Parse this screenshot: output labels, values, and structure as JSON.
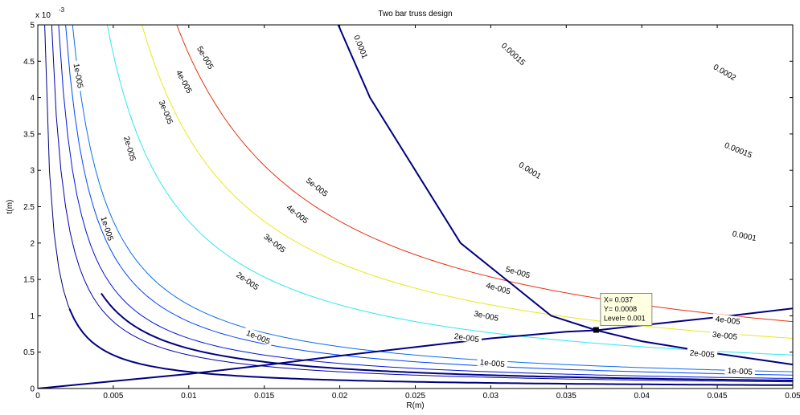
{
  "chart_data": {
    "type": "contour",
    "title": "Two bar truss design",
    "xlabel": "R(m)",
    "ylabel": "t(m)",
    "y_exponent_label": "x 10",
    "y_exponent_power": "-3",
    "xlim": [
      0,
      0.05
    ],
    "ylim": [
      0,
      5
    ],
    "grid": false,
    "xticks": [
      {
        "v": 0,
        "label": "0"
      },
      {
        "v": 0.005,
        "label": "0.005"
      },
      {
        "v": 0.01,
        "label": "0.01"
      },
      {
        "v": 0.015,
        "label": "0.015"
      },
      {
        "v": 0.02,
        "label": "0.02"
      },
      {
        "v": 0.025,
        "label": "0.025"
      },
      {
        "v": 0.03,
        "label": "0.03"
      },
      {
        "v": 0.035,
        "label": "0.035"
      },
      {
        "v": 0.04,
        "label": "0.04"
      },
      {
        "v": 0.045,
        "label": "0.045"
      },
      {
        "v": 0.05,
        "label": "0.05"
      }
    ],
    "yticks": [
      {
        "v": 0,
        "label": "0"
      },
      {
        "v": 0.5,
        "label": "0.5"
      },
      {
        "v": 1,
        "label": "1"
      },
      {
        "v": 1.5,
        "label": "1.5"
      },
      {
        "v": 2,
        "label": "2"
      },
      {
        "v": 2.5,
        "label": "2.5"
      },
      {
        "v": 3,
        "label": "3"
      },
      {
        "v": 3.5,
        "label": "3.5"
      },
      {
        "v": 4,
        "label": "4"
      },
      {
        "v": 4.5,
        "label": "4.5"
      },
      {
        "v": 5,
        "label": "5"
      }
    ],
    "contour_levels": [
      {
        "level": 1e-05,
        "label": "1e-005",
        "color": "#00007f",
        "k": 0.0023
      },
      {
        "level": 2e-05,
        "label": "2e-005",
        "color": "#0000ad",
        "k": 0.0046
      },
      {
        "level": 3e-05,
        "label": "3e-005",
        "color": "#0014dd",
        "k": 0.0069
      },
      {
        "level": 4e-05,
        "label": "4e-005",
        "color": "#0044ff",
        "k": 0.0092
      },
      {
        "level": 5e-05,
        "label": "5e-005",
        "color": "#0a6cf0",
        "k": 0.0115
      },
      {
        "level": 0.0001,
        "label": "0.0001",
        "color": "#2ee8ee",
        "k": 0.023
      },
      {
        "level": 0.00015,
        "label": "0.00015",
        "color": "#e8e81a",
        "k": 0.0345
      },
      {
        "level": 0.0002,
        "label": "0.0002",
        "color": "#e83010",
        "k": 0.046
      }
    ],
    "constraint_curves": [
      {
        "name": "buckling",
        "type": "hyperbola",
        "k": 0.0023,
        "x_from": 0.0021,
        "x_to": 0.05,
        "color": "#00007f"
      },
      {
        "name": "stress",
        "type": "hyperbola",
        "k": 0.0055,
        "x_from": 0.0042,
        "x_to": 0.05,
        "color": "#00007f"
      },
      {
        "name": "steep",
        "type": "polyline",
        "color": "#00007f",
        "points": [
          [
            0.0199,
            5.0
          ],
          [
            0.022,
            4.0
          ],
          [
            0.025,
            3.0
          ],
          [
            0.028,
            2.0
          ],
          [
            0.031,
            1.5
          ],
          [
            0.034,
            1.0
          ],
          [
            0.037,
            0.8
          ],
          [
            0.04,
            0.65
          ],
          [
            0.045,
            0.48
          ],
          [
            0.05,
            0.33
          ]
        ]
      },
      {
        "name": "rising",
        "type": "polyline",
        "color": "#00007f",
        "points": [
          [
            0.0,
            0.0
          ],
          [
            0.005,
            0.1
          ],
          [
            0.01,
            0.2
          ],
          [
            0.015,
            0.32
          ],
          [
            0.02,
            0.45
          ],
          [
            0.025,
            0.57
          ],
          [
            0.03,
            0.69
          ],
          [
            0.035,
            0.78
          ],
          [
            0.037,
            0.8
          ],
          [
            0.04,
            0.87
          ],
          [
            0.045,
            0.98
          ],
          [
            0.05,
            1.1
          ]
        ]
      }
    ],
    "contour_label_positions": [
      {
        "text": "1e-005",
        "x": 0.0027,
        "y": 4.3,
        "rotate": 80
      },
      {
        "text": "1e-005",
        "x": 0.0046,
        "y": 2.2,
        "rotate": 72
      },
      {
        "text": "1e-005",
        "x": 0.0146,
        "y": 0.71,
        "rotate": 22
      },
      {
        "text": "1e-005",
        "x": 0.0301,
        "y": 0.35,
        "rotate": 5
      },
      {
        "text": "1e-005",
        "x": 0.0465,
        "y": 0.24,
        "rotate": 3
      },
      {
        "text": "2e-005",
        "x": 0.0061,
        "y": 3.3,
        "rotate": 74
      },
      {
        "text": "2e-005",
        "x": 0.0139,
        "y": 1.48,
        "rotate": 35
      },
      {
        "text": "2e-005",
        "x": 0.0284,
        "y": 0.7,
        "rotate": 8
      },
      {
        "text": "2e-005",
        "x": 0.044,
        "y": 0.48,
        "rotate": 5
      },
      {
        "text": "3e-005",
        "x": 0.0085,
        "y": 3.8,
        "rotate": 68
      },
      {
        "text": "3e-005",
        "x": 0.0157,
        "y": 2.0,
        "rotate": 38
      },
      {
        "text": "3e-005",
        "x": 0.0297,
        "y": 1.0,
        "rotate": 12
      },
      {
        "text": "3e-005",
        "x": 0.0455,
        "y": 0.73,
        "rotate": 6
      },
      {
        "text": "4e-005",
        "x": 0.0097,
        "y": 4.22,
        "rotate": 62
      },
      {
        "text": "4e-005",
        "x": 0.0172,
        "y": 2.4,
        "rotate": 38
      },
      {
        "text": "4e-005",
        "x": 0.0305,
        "y": 1.38,
        "rotate": 16
      },
      {
        "text": "4e-005",
        "x": 0.0457,
        "y": 0.94,
        "rotate": 7
      },
      {
        "text": "5e-005",
        "x": 0.0111,
        "y": 4.55,
        "rotate": 60
      },
      {
        "text": "5e-005",
        "x": 0.0185,
        "y": 2.77,
        "rotate": 38
      },
      {
        "text": "5e-005",
        "x": 0.0318,
        "y": 1.6,
        "rotate": 16
      },
      {
        "text": "0.0001",
        "x": 0.0214,
        "y": 4.7,
        "rotate": 68
      },
      {
        "text": "0.0001",
        "x": 0.0326,
        "y": 3.0,
        "rotate": 32
      },
      {
        "text": "0.0001",
        "x": 0.0468,
        "y": 2.1,
        "rotate": 12
      },
      {
        "text": "0.00015",
        "x": 0.0315,
        "y": 4.6,
        "rotate": 42
      },
      {
        "text": "0.00015",
        "x": 0.0464,
        "y": 3.28,
        "rotate": 22
      },
      {
        "text": "0.0002",
        "x": 0.0455,
        "y": 4.35,
        "rotate": 30
      }
    ],
    "data_tip": {
      "x": 0.037,
      "y": 0.8,
      "lines": [
        "X= 0.037",
        "Y= 0.0008",
        "Level= 0.001"
      ]
    }
  }
}
